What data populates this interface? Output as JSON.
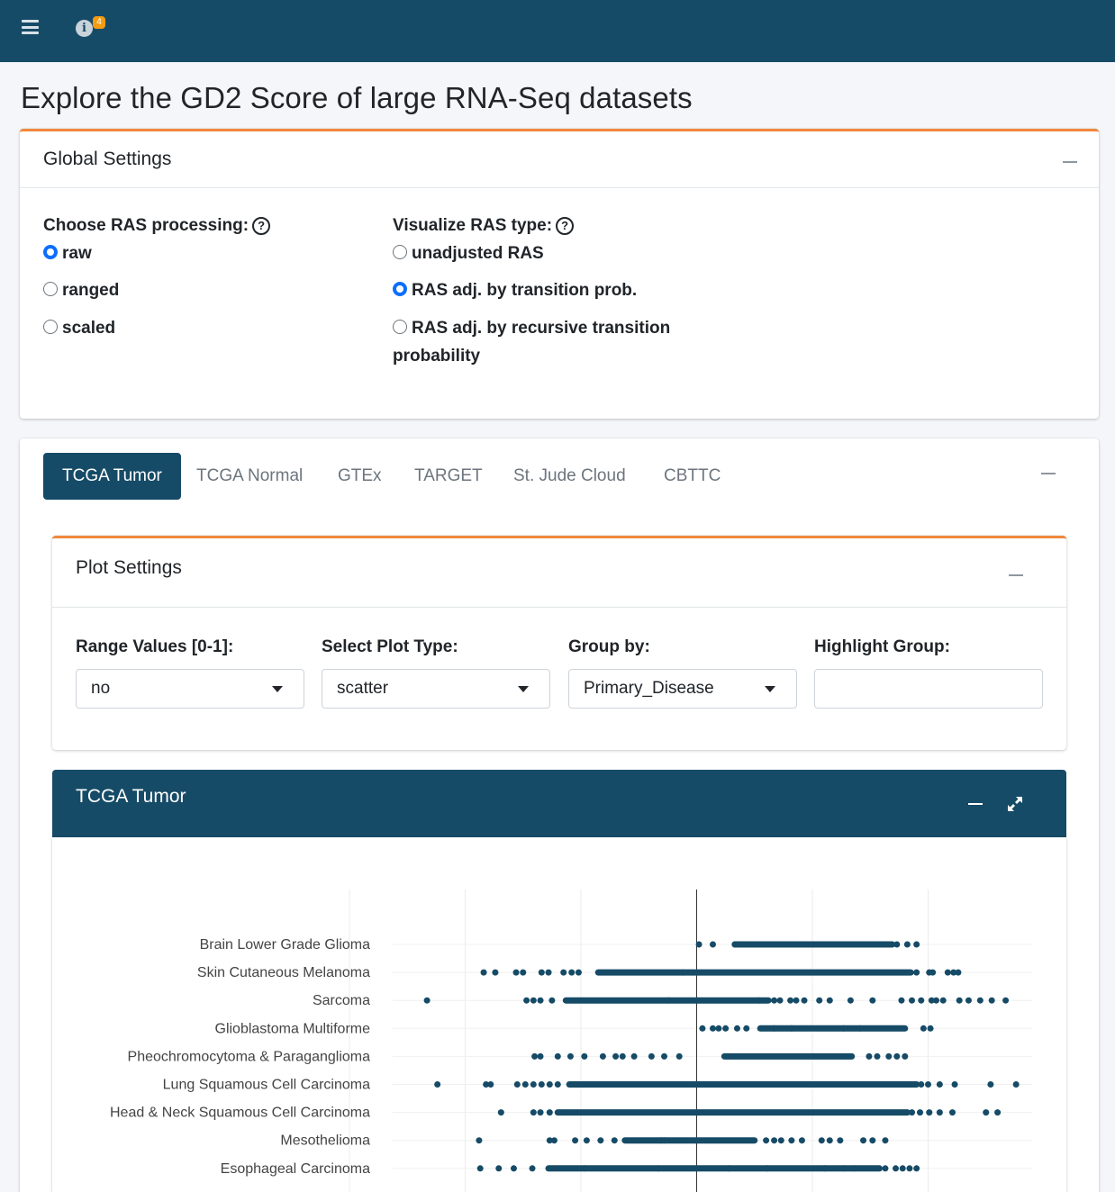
{
  "header": {
    "info_badge": "4"
  },
  "page_title": "Explore the GD2 Score of large RNA-Seq datasets",
  "global_settings": {
    "title": "Global Settings",
    "processing": {
      "label": "Choose RAS processing:",
      "help": "?",
      "options": [
        "raw",
        "ranged",
        "scaled"
      ],
      "selected": "raw"
    },
    "ras_type": {
      "label": "Visualize RAS type:",
      "help": "?",
      "options": [
        "unadjusted RAS",
        "RAS adj. by transition prob.",
        "RAS adj. by recursive transition",
        "probability"
      ],
      "selected": "RAS adj. by transition prob."
    }
  },
  "dataset_tabs": [
    "TCGA Tumor",
    "TCGA Normal",
    "GTEx",
    "TARGET",
    "St. Jude Cloud",
    "CBTTC"
  ],
  "active_tab": "TCGA Tumor",
  "plot_settings": {
    "title": "Plot Settings",
    "range_values": {
      "label": "Range Values [0-1]:",
      "value": "no"
    },
    "plot_type": {
      "label": "Select Plot Type:",
      "value": "scatter"
    },
    "group_by": {
      "label": "Group by:",
      "value": "Primary_Disease"
    },
    "highlight_group": {
      "label": "Highlight Group:",
      "value": ""
    }
  },
  "plot_panel": {
    "title": "TCGA Tumor"
  },
  "colors": {
    "navy": "#164b67",
    "accent_orange": "#f0883c",
    "badge": "#f39c12",
    "point": "#164b67"
  },
  "chart_data": {
    "type": "scatter",
    "title": "",
    "xlabel": "",
    "ylabel": "",
    "grid": true,
    "categories": [
      "Brain Lower Grade Glioma",
      "Skin Cutaneous Melanoma",
      "Sarcoma",
      "Glioblastoma Multiforme",
      "Pheochromocytoma & Paraganglioma",
      "Lung Squamous Cell Carcinoma",
      "Head & Neck Squamous Cell Carcinoma",
      "Mesothelioma",
      "Esophageal Carcinoma"
    ],
    "series": [
      {
        "category": "Brain Lower Grade Glioma",
        "dense_range": [
          0.33,
          1.69
        ],
        "points": [
          0.02,
          0.14,
          0.33,
          0.4,
          1.73,
          1.82,
          1.9
        ]
      },
      {
        "category": "Skin Cutaneous Melanoma",
        "dense_range": [
          -0.85,
          1.85
        ],
        "points": [
          -1.84,
          -1.74,
          -1.56,
          -1.5,
          -1.34,
          -1.28,
          -1.15,
          -1.08,
          -1.02,
          -0.12,
          1.9,
          2.01,
          2.04,
          2.17,
          2.22,
          2.26
        ]
      },
      {
        "category": "Sarcoma",
        "dense_range": [
          -1.13,
          0.62
        ],
        "points": [
          -2.33,
          -1.47,
          -1.41,
          -1.35,
          -1.25,
          -0.24,
          0.54,
          0.67,
          0.72,
          0.81,
          0.86,
          0.93,
          1.06,
          1.15,
          1.33,
          1.52,
          1.77,
          1.86,
          1.94,
          2.03,
          2.07,
          2.13,
          2.27,
          2.35,
          2.45,
          2.55,
          2.67
        ]
      },
      {
        "category": "Glioblastoma Multiforme",
        "dense_range": [
          0.55,
          1.8
        ],
        "points": [
          0.05,
          0.14,
          0.19,
          0.25,
          0.35,
          0.43,
          1.96,
          2.02,
          0.67,
          0.82,
          1.27,
          1.41
        ]
      },
      {
        "category": "Pheochromocytoma & Paraganglioma",
        "dense_range": [
          0.24,
          1.34
        ],
        "points": [
          -1.4,
          -1.35,
          -1.2,
          -1.09,
          -0.97,
          -0.81,
          -0.7,
          -0.64,
          -0.54,
          -0.39,
          -0.28,
          -0.15,
          1.49,
          1.56,
          1.66,
          1.73,
          1.8
        ]
      },
      {
        "category": "Lung Squamous Cell Carcinoma",
        "dense_range": [
          -1.1,
          1.9
        ],
        "points": [
          -2.24,
          -1.82,
          -1.78,
          -1.55,
          -1.48,
          -1.41,
          -1.34,
          -1.27,
          -1.2,
          1.94,
          2.0,
          2.1,
          2.23,
          2.54,
          2.76
        ]
      },
      {
        "category": "Head & Neck Squamous Cell Carcinoma",
        "dense_range": [
          -1.2,
          1.82
        ],
        "points": [
          -1.69,
          -1.41,
          -1.35,
          -1.27,
          1.86,
          1.93,
          2.01,
          2.1,
          2.21,
          2.5,
          2.6
        ]
      },
      {
        "category": "Mesothelioma",
        "dense_range": [
          -0.62,
          0.5
        ],
        "points": [
          -1.88,
          -1.27,
          -1.23,
          -1.05,
          -0.95,
          -0.83,
          -0.71,
          -0.31,
          -0.28,
          0.6,
          0.67,
          0.73,
          0.82,
          0.91,
          1.08,
          1.15,
          1.24,
          1.44,
          1.52,
          1.63
        ]
      },
      {
        "category": "Esophageal Carcinoma",
        "dense_range": [
          -1.28,
          1.58
        ],
        "points": [
          -1.87,
          -1.71,
          -1.58,
          -1.42,
          -0.97,
          -0.33,
          0.28,
          0.61,
          1.11,
          1.27,
          1.36,
          1.63,
          1.72,
          1.78,
          1.84,
          1.9
        ]
      }
    ],
    "xlim": [
      -3.0,
      2.93
    ],
    "vertical_line_x": 0,
    "x_gridlines": [
      -3,
      -2,
      -1,
      0,
      1,
      2
    ]
  }
}
